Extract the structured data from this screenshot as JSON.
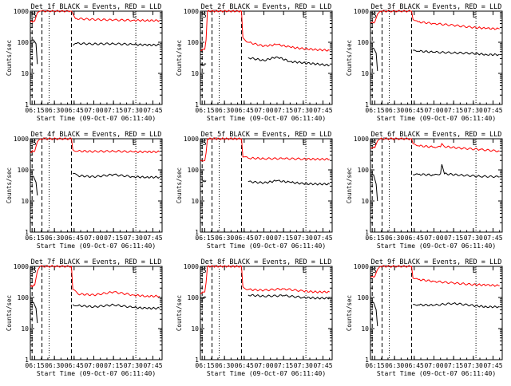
{
  "chart_data": [
    {
      "type": "line",
      "title": "Det_1f BLACK = Events, RED = LLD",
      "xlabel": "Start Time (09-Oct-07 06:11:40)",
      "ylabel": "Counts/sec",
      "yscale": "log",
      "ylim": [
        1,
        1000
      ],
      "xlim": [
        "06:11:40",
        "07:52:00"
      ],
      "x_ticks": [
        "06:15",
        "06:30",
        "06:45",
        "07:00",
        "07:15",
        "07:30",
        "07:45"
      ],
      "y_ticks": [
        "1",
        "10",
        "100",
        "1000"
      ],
      "markers": [
        "S",
        "E"
      ],
      "series": [
        {
          "color": "#ff0000",
          "x": [
            "06:11:40",
            "06:15:00",
            "06:17:00",
            "06:19:00",
            "06:20:00",
            "06:42:00",
            "06:43:00",
            "06:46:00",
            "07:00:00",
            "07:15:00",
            "07:30:00",
            "07:40:00",
            "07:50:00"
          ],
          "values": [
            450,
            480,
            900,
            1000,
            1000,
            1000,
            1000,
            580,
            540,
            520,
            510,
            500,
            500
          ]
        },
        {
          "color": "#000000",
          "x": [
            "06:11:40",
            "06:14:00",
            "06:16:00",
            "06:17:00",
            "06:43:00",
            "06:44:00",
            "06:46:00",
            "07:00:00",
            "07:15:00",
            "07:30:00",
            "07:40:00",
            "07:50:00"
          ],
          "values": [
            110,
            120,
            90,
            20,
            null,
            80,
            92,
            88,
            90,
            85,
            82,
            82
          ]
        }
      ]
    },
    {
      "type": "line",
      "title": "Det_2f BLACK = Events, RED = LLD",
      "xlabel": "Start Time (09-Oct-07 06:11:40)",
      "ylabel": "Counts/sec",
      "yscale": "log",
      "ylim": [
        1,
        1000
      ],
      "xlim": [
        "06:11:40",
        "07:52:00"
      ],
      "x_ticks": [
        "06:15",
        "06:30",
        "06:45",
        "07:00",
        "07:15",
        "07:30",
        "07:45"
      ],
      "y_ticks": [
        "1",
        "10",
        "100",
        "1000"
      ],
      "markers": [
        "S",
        "E"
      ],
      "series": [
        {
          "color": "#ff0000",
          "x": [
            "06:11:40",
            "06:15:00",
            "06:16:00",
            "06:17:00",
            "06:43:00",
            "06:44:00",
            "06:48:00",
            "07:00:00",
            "07:10:00",
            "07:20:00",
            "07:30:00",
            "07:40:00",
            "07:50:00"
          ],
          "values": [
            55,
            60,
            120,
            1000,
            1000,
            140,
            100,
            75,
            85,
            70,
            62,
            58,
            55
          ]
        },
        {
          "color": "#000000",
          "x": [
            "06:11:40",
            "06:16:00",
            "06:17:00",
            "06:44:00",
            "06:48:00",
            "07:00:00",
            "07:10:00",
            "07:20:00",
            "07:30:00",
            "07:40:00",
            "07:50:00"
          ],
          "values": [
            18,
            20,
            null,
            null,
            32,
            26,
            34,
            24,
            22,
            20,
            18
          ]
        }
      ]
    },
    {
      "type": "line",
      "title": "Det_3f BLACK = Events, RED = LLD",
      "xlabel": "Start Time (09-Oct-07 06:11:40)",
      "ylabel": "Counts/sec",
      "yscale": "log",
      "ylim": [
        1,
        1000
      ],
      "xlim": [
        "06:11:40",
        "07:52:00"
      ],
      "x_ticks": [
        "06:15",
        "06:30",
        "06:45",
        "07:00",
        "07:15",
        "07:30",
        "07:45"
      ],
      "y_ticks": [
        "1",
        "10",
        "100",
        "1000"
      ],
      "markers": [
        "S",
        "E"
      ],
      "series": [
        {
          "color": "#ff0000",
          "x": [
            "06:11:40",
            "06:15:00",
            "06:17:00",
            "06:19:00",
            "06:43:00",
            "06:44:00",
            "06:48:00",
            "07:00:00",
            "07:15:00",
            "07:30:00",
            "07:40:00",
            "07:50:00"
          ],
          "values": [
            420,
            450,
            800,
            1000,
            1000,
            550,
            450,
            400,
            350,
            300,
            280,
            270
          ]
        },
        {
          "color": "#000000",
          "x": [
            "06:11:40",
            "06:14:00",
            "06:16:00",
            "06:17:00",
            "06:43:00",
            "06:44:00",
            "06:48:00",
            "07:00:00",
            "07:15:00",
            "07:30:00",
            "07:40:00",
            "07:50:00"
          ],
          "values": [
            60,
            65,
            45,
            12,
            null,
            55,
            52,
            48,
            46,
            44,
            40,
            40
          ]
        }
      ]
    },
    {
      "type": "line",
      "title": "Det_4f BLACK = Events, RED = LLD",
      "xlabel": "Start Time (09-Oct-07 06:11:40)",
      "ylabel": "Counts/sec",
      "yscale": "log",
      "ylim": [
        1,
        1000
      ],
      "xlim": [
        "06:11:40",
        "07:52:00"
      ],
      "x_ticks": [
        "06:15",
        "06:30",
        "06:45",
        "07:00",
        "07:15",
        "07:30",
        "07:45"
      ],
      "y_ticks": [
        "1",
        "10",
        "100",
        "1000"
      ],
      "markers": [
        "S",
        "E"
      ],
      "series": [
        {
          "color": "#ff0000",
          "x": [
            "06:11:40",
            "06:15:00",
            "06:17:00",
            "06:19:00",
            "06:43:00",
            "06:44:00",
            "06:48:00",
            "07:00:00",
            "07:15:00",
            "07:30:00",
            "07:40:00",
            "07:50:00"
          ],
          "values": [
            380,
            400,
            800,
            1000,
            1000,
            450,
            400,
            390,
            400,
            380,
            380,
            380
          ]
        },
        {
          "color": "#000000",
          "x": [
            "06:11:40",
            "06:14:00",
            "06:16:00",
            "06:17:00",
            "06:43:00",
            "06:44:00",
            "06:48:00",
            "07:00:00",
            "07:15:00",
            "07:30:00",
            "07:40:00",
            "07:50:00"
          ],
          "values": [
            60,
            62,
            40,
            15,
            null,
            75,
            65,
            60,
            70,
            60,
            58,
            58
          ]
        }
      ]
    },
    {
      "type": "line",
      "title": "Det_5f BLACK = Events, RED = LLD",
      "xlabel": "Start Time (09-Oct-07 06:11:40)",
      "ylabel": "Counts/sec",
      "yscale": "log",
      "ylim": [
        1,
        1000
      ],
      "xlim": [
        "06:11:40",
        "07:52:00"
      ],
      "x_ticks": [
        "06:15",
        "06:30",
        "06:45",
        "07:00",
        "07:15",
        "07:30",
        "07:45"
      ],
      "y_ticks": [
        "1",
        "10",
        "100",
        "1000"
      ],
      "markers": [
        "S",
        "E"
      ],
      "series": [
        {
          "color": "#ff0000",
          "x": [
            "06:11:40",
            "06:15:00",
            "06:16:00",
            "06:17:00",
            "06:43:00",
            "06:44:00",
            "06:48:00",
            "07:00:00",
            "07:15:00",
            "07:30:00",
            "07:40:00",
            "07:50:00"
          ],
          "values": [
            190,
            200,
            350,
            1000,
            1000,
            260,
            240,
            230,
            230,
            225,
            220,
            220
          ]
        },
        {
          "color": "#000000",
          "x": [
            "06:11:40",
            "06:16:00",
            "06:17:00",
            "06:44:00",
            "06:48:00",
            "07:00:00",
            "07:10:00",
            "07:20:00",
            "07:30:00",
            "07:40:00",
            "07:50:00"
          ],
          "values": [
            40,
            45,
            null,
            null,
            42,
            38,
            45,
            40,
            36,
            35,
            35
          ]
        }
      ]
    },
    {
      "type": "line",
      "title": "Det_6f BLACK = Events, RED = LLD",
      "xlabel": "Start Time (09-Oct-07 06:11:40)",
      "ylabel": "Counts/sec",
      "yscale": "log",
      "ylim": [
        1,
        1000
      ],
      "xlim": [
        "06:11:40",
        "07:52:00"
      ],
      "x_ticks": [
        "06:15",
        "06:30",
        "06:45",
        "07:00",
        "07:15",
        "07:30",
        "07:45"
      ],
      "y_ticks": [
        "1",
        "10",
        "100",
        "1000"
      ],
      "markers": [
        "S",
        "E"
      ],
      "series": [
        {
          "color": "#ff0000",
          "x": [
            "06:11:40",
            "06:15:00",
            "06:17:00",
            "06:19:00",
            "06:43:00",
            "06:44:00",
            "06:48:00",
            "07:00:00",
            "07:05:00",
            "07:06:00",
            "07:08:00",
            "07:20:00",
            "07:35:00",
            "07:50:00"
          ],
          "values": [
            500,
            520,
            850,
            1000,
            1000,
            700,
            600,
            540,
            550,
            700,
            560,
            500,
            450,
            400
          ]
        },
        {
          "color": "#000000",
          "x": [
            "06:11:40",
            "06:14:00",
            "06:16:00",
            "06:17:00",
            "06:43:00",
            "06:44:00",
            "06:48:00",
            "07:00:00",
            "07:05:00",
            "07:06:00",
            "07:08:00",
            "07:20:00",
            "07:35:00",
            "07:50:00"
          ],
          "values": [
            65,
            70,
            35,
            10,
            null,
            70,
            72,
            68,
            75,
            150,
            75,
            68,
            62,
            60
          ]
        }
      ]
    },
    {
      "type": "line",
      "title": "Det_7f BLACK = Events, RED = LLD",
      "xlabel": "Start Time (09-Oct-07 06:11:40)",
      "ylabel": "Counts/sec",
      "yscale": "log",
      "ylim": [
        1,
        1000
      ],
      "xlim": [
        "06:11:40",
        "07:52:00"
      ],
      "x_ticks": [
        "06:15",
        "06:30",
        "06:45",
        "07:00",
        "07:15",
        "07:30",
        "07:45"
      ],
      "y_ticks": [
        "1",
        "10",
        "100",
        "1000"
      ],
      "markers": [
        "S",
        "E"
      ],
      "series": [
        {
          "color": "#ff0000",
          "x": [
            "06:11:40",
            "06:15:00",
            "06:17:00",
            "06:19:00",
            "06:43:00",
            "06:44:00",
            "06:48:00",
            "07:00:00",
            "07:15:00",
            "07:30:00",
            "07:40:00",
            "07:50:00"
          ],
          "values": [
            220,
            250,
            700,
            1000,
            1000,
            180,
            130,
            120,
            150,
            120,
            110,
            110
          ]
        },
        {
          "color": "#000000",
          "x": [
            "06:11:40",
            "06:14:00",
            "06:16:00",
            "06:17:00",
            "06:43:00",
            "06:44:00",
            "06:48:00",
            "07:00:00",
            "07:15:00",
            "07:30:00",
            "07:40:00",
            "07:50:00"
          ],
          "values": [
            65,
            70,
            45,
            15,
            null,
            60,
            55,
            50,
            58,
            48,
            45,
            45
          ]
        }
      ]
    },
    {
      "type": "line",
      "title": "Det_8f BLACK = Events, RED = LLD",
      "xlabel": "Start Time (09-Oct-07 06:11:40)",
      "ylabel": "Counts/sec",
      "yscale": "log",
      "ylim": [
        1,
        1000
      ],
      "xlim": [
        "06:11:40",
        "07:52:00"
      ],
      "x_ticks": [
        "06:15",
        "06:30",
        "06:45",
        "07:00",
        "07:15",
        "07:30",
        "07:45"
      ],
      "y_ticks": [
        "1",
        "10",
        "100",
        "1000"
      ],
      "markers": [
        "S",
        "E"
      ],
      "series": [
        {
          "color": "#ff0000",
          "x": [
            "06:11:40",
            "06:15:00",
            "06:16:00",
            "06:17:00",
            "06:43:00",
            "06:44:00",
            "06:48:00",
            "07:00:00",
            "07:15:00",
            "07:30:00",
            "07:40:00",
            "07:50:00"
          ],
          "values": [
            140,
            150,
            300,
            1000,
            1000,
            220,
            180,
            170,
            190,
            160,
            150,
            150
          ]
        },
        {
          "color": "#000000",
          "x": [
            "06:11:40",
            "06:16:00",
            "06:17:00",
            "06:44:00",
            "06:48:00",
            "07:00:00",
            "07:15:00",
            "07:30:00",
            "07:40:00",
            "07:50:00"
          ],
          "values": [
            95,
            100,
            null,
            null,
            120,
            110,
            115,
            100,
            95,
            95
          ]
        }
      ]
    },
    {
      "type": "line",
      "title": "Det_9f BLACK = Events, RED = LLD",
      "xlabel": "Start Time (09-Oct-07 06:11:40)",
      "ylabel": "Counts/sec",
      "yscale": "log",
      "ylim": [
        1,
        1000
      ],
      "xlim": [
        "06:11:40",
        "07:52:00"
      ],
      "x_ticks": [
        "06:15",
        "06:30",
        "06:45",
        "07:00",
        "07:15",
        "07:30",
        "07:45"
      ],
      "y_ticks": [
        "1",
        "10",
        "100",
        "1000"
      ],
      "markers": [
        "S",
        "E"
      ],
      "series": [
        {
          "color": "#ff0000",
          "x": [
            "06:11:40",
            "06:15:00",
            "06:17:00",
            "06:19:00",
            "06:43:00",
            "06:44:00",
            "06:48:00",
            "07:00:00",
            "07:15:00",
            "07:30:00",
            "07:40:00",
            "07:50:00"
          ],
          "values": [
            450,
            480,
            800,
            1000,
            1000,
            420,
            380,
            330,
            290,
            260,
            250,
            240
          ]
        },
        {
          "color": "#000000",
          "x": [
            "06:11:40",
            "06:14:00",
            "06:16:00",
            "06:17:00",
            "06:43:00",
            "06:44:00",
            "06:48:00",
            "07:00:00",
            "07:15:00",
            "07:30:00",
            "07:40:00",
            "07:50:00"
          ],
          "values": [
            65,
            70,
            40,
            12,
            null,
            60,
            58,
            56,
            65,
            55,
            50,
            50
          ]
        }
      ]
    }
  ]
}
